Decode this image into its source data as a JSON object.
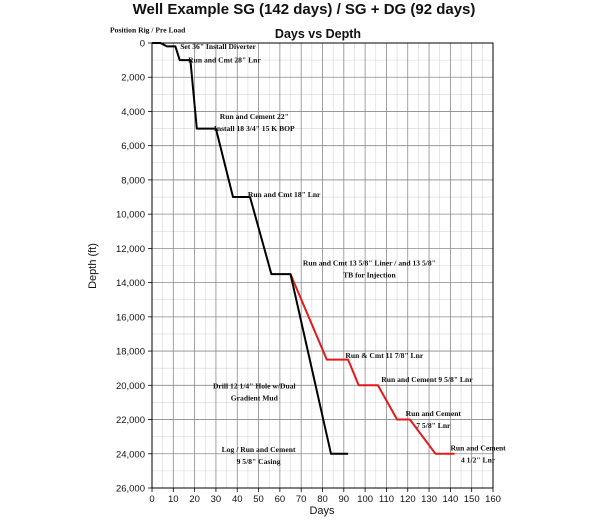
{
  "chart_data": {
    "type": "line",
    "title": "Well Example SG (142 days) / SG + DG (92 days)",
    "subtitle": "Days vs Depth",
    "xlabel": "Days",
    "ylabel": "Depth (ft)",
    "xlim": [
      0,
      160
    ],
    "ylim": [
      0,
      26000
    ],
    "y_inverted": true,
    "x_ticks": [
      0,
      10,
      20,
      30,
      40,
      50,
      60,
      70,
      80,
      90,
      100,
      110,
      120,
      130,
      140,
      150,
      160
    ],
    "y_ticks": [
      0,
      2000,
      4000,
      6000,
      8000,
      10000,
      12000,
      14000,
      16000,
      18000,
      20000,
      22000,
      24000,
      26000
    ],
    "y_tick_labels": [
      "0",
      "2,000",
      "4,000",
      "6,000",
      "8,000",
      "10,000",
      "12,000",
      "14,000",
      "16,000",
      "18,000",
      "20,000",
      "22,000",
      "24,000",
      "26,000"
    ],
    "grid": true,
    "series": [
      {
        "name": "SG",
        "color": "#e41a1a",
        "points": [
          [
            65,
            13500
          ],
          [
            82,
            18500
          ],
          [
            92,
            18500
          ],
          [
            97,
            20000
          ],
          [
            106,
            20000
          ],
          [
            115,
            22000
          ],
          [
            121,
            22000
          ],
          [
            133,
            24000
          ],
          [
            142,
            24000
          ]
        ]
      },
      {
        "name": "SG + DG",
        "color": "#000000",
        "points": [
          [
            0,
            0
          ],
          [
            4,
            0
          ],
          [
            7,
            200
          ],
          [
            11,
            200
          ],
          [
            13,
            1000
          ],
          [
            18,
            1000
          ],
          [
            21,
            5000
          ],
          [
            30,
            5000
          ],
          [
            38,
            9000
          ],
          [
            46,
            9000
          ],
          [
            56,
            13500
          ],
          [
            65,
            13500
          ],
          [
            84,
            24000
          ],
          [
            92,
            24000
          ]
        ]
      }
    ],
    "annotations": [
      {
        "text": "Position Rig / Pre Load",
        "x": -2,
        "y": -600
      },
      {
        "text": "Set 36\" Install Diverter",
        "x": 31,
        "y": 350
      },
      {
        "text": "Run and Cmt 28\" Lnr",
        "x": 34,
        "y": 1150
      },
      {
        "text": "Run and Cement 22\"",
        "x": 48,
        "y": 4450
      },
      {
        "text": "Install 18 3/4\" 15 K BOP",
        "x": 48,
        "y": 5150
      },
      {
        "text": "Run and Cmt 18\" Lnr",
        "x": 62,
        "y": 9000
      },
      {
        "text": "Run and Cmt 13 5/8\" Liner / and 13 5/8\"",
        "x": 102,
        "y": 13000
      },
      {
        "text": "TB for Injection",
        "x": 102,
        "y": 13700
      },
      {
        "text": "Run & Cmt 11 7/8\" Lnr",
        "x": 109,
        "y": 18400
      },
      {
        "text": "Run and Cement 9 5/8\" Lnr",
        "x": 129,
        "y": 19800
      },
      {
        "text": "Drill 12 1/4\" Hole w/Dual",
        "x": 48,
        "y": 20200
      },
      {
        "text": "Gradient Mud",
        "x": 48,
        "y": 20900
      },
      {
        "text": "Run and Cement",
        "x": 132,
        "y": 21800
      },
      {
        "text": "7 5/8\" Lnr",
        "x": 132,
        "y": 22500
      },
      {
        "text": "Log / Run and Cement",
        "x": 50,
        "y": 23900
      },
      {
        "text": "9 5/8\" Casing",
        "x": 50,
        "y": 24600
      },
      {
        "text": "Run and Cement",
        "x": 153,
        "y": 23800
      },
      {
        "text": "4 1/2\" Lnr",
        "x": 153,
        "y": 24500
      }
    ]
  }
}
